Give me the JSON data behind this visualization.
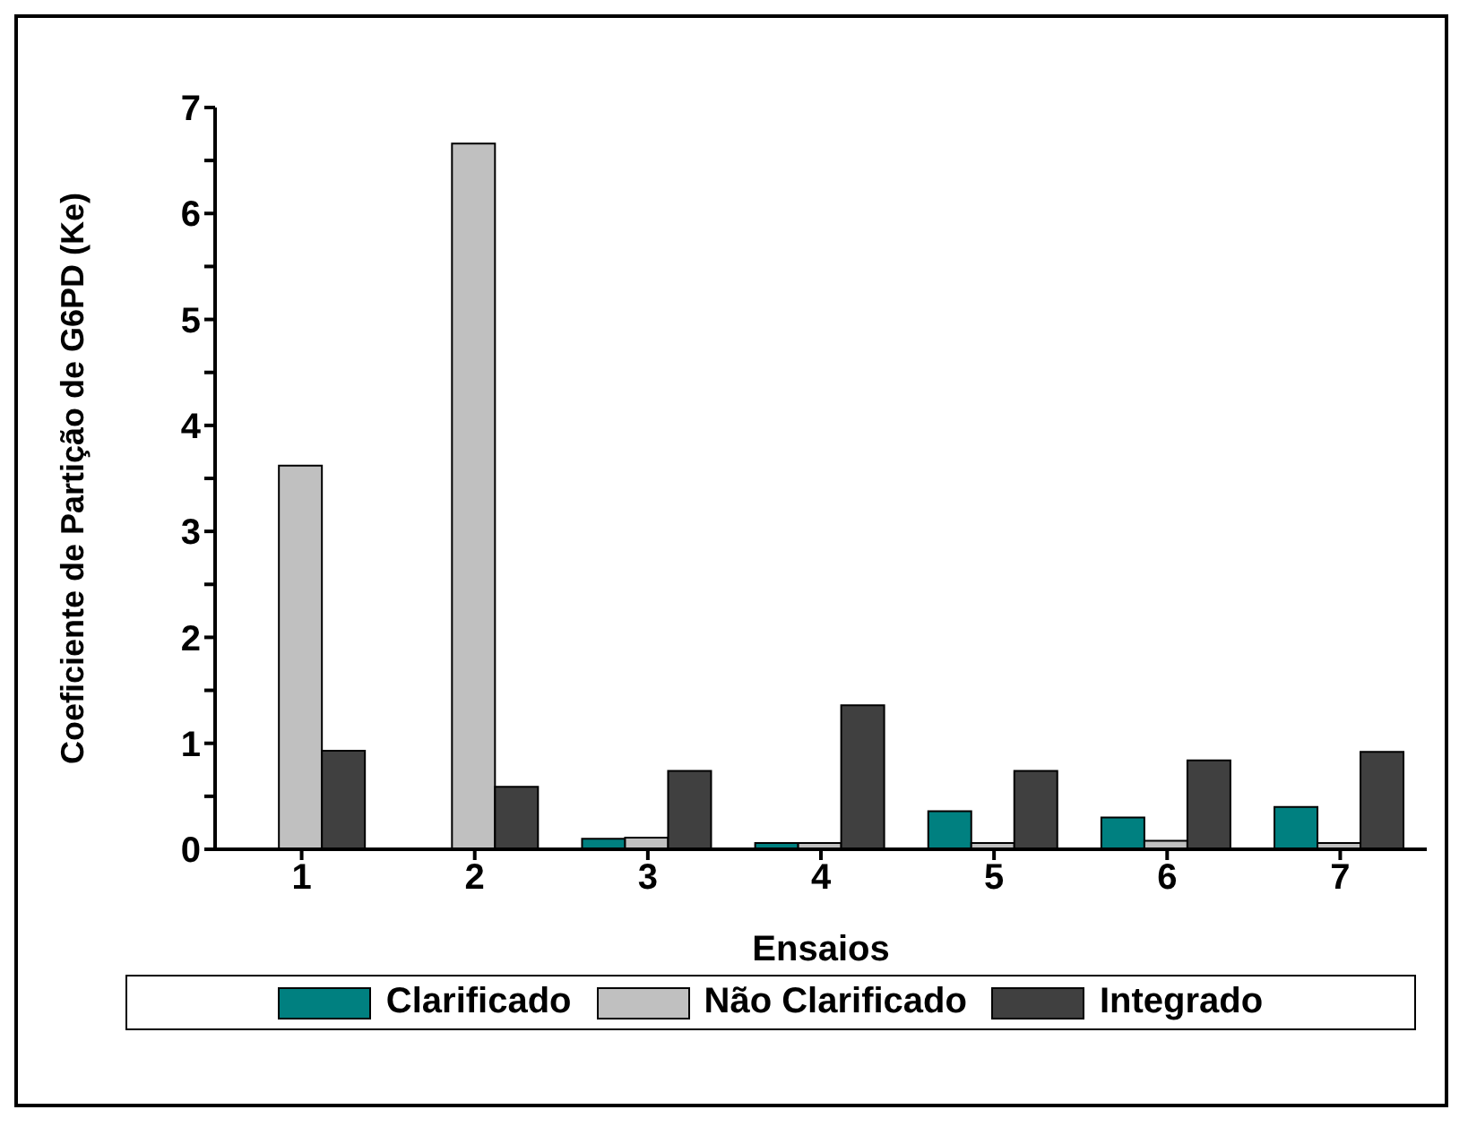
{
  "chart_data": {
    "type": "bar",
    "xlabel": "Ensaios",
    "ylabel": "Coeficiente de Partição de G6PD (Ke)",
    "categories": [
      "1",
      "2",
      "3",
      "4",
      "5",
      "6",
      "7"
    ],
    "series": [
      {
        "name": "Clarificado",
        "color": "#008080",
        "values": [
          null,
          null,
          0.1,
          0.06,
          0.36,
          0.3,
          0.4
        ]
      },
      {
        "name": "Não Clarificado",
        "color": "#c0c0c0",
        "values": [
          3.62,
          6.66,
          0.11,
          0.06,
          0.06,
          0.08,
          0.06
        ]
      },
      {
        "name": "Integrado",
        "color": "#404040",
        "values": [
          0.93,
          0.59,
          0.74,
          1.36,
          0.74,
          0.84,
          0.92
        ]
      }
    ],
    "ylim": [
      0,
      7
    ],
    "yticks": [
      0,
      {
        "value": 0.5,
        "label": null
      },
      1,
      {
        "value": 1.5,
        "label": null
      },
      2,
      {
        "value": 2.5,
        "label": null
      },
      3,
      {
        "value": 3.5,
        "label": null
      },
      4,
      {
        "value": 4.5,
        "label": null
      },
      5,
      {
        "value": 5.5,
        "label": null
      },
      6,
      {
        "value": 6.5,
        "label": null
      },
      7
    ],
    "grid": false,
    "legend": "bottom"
  }
}
